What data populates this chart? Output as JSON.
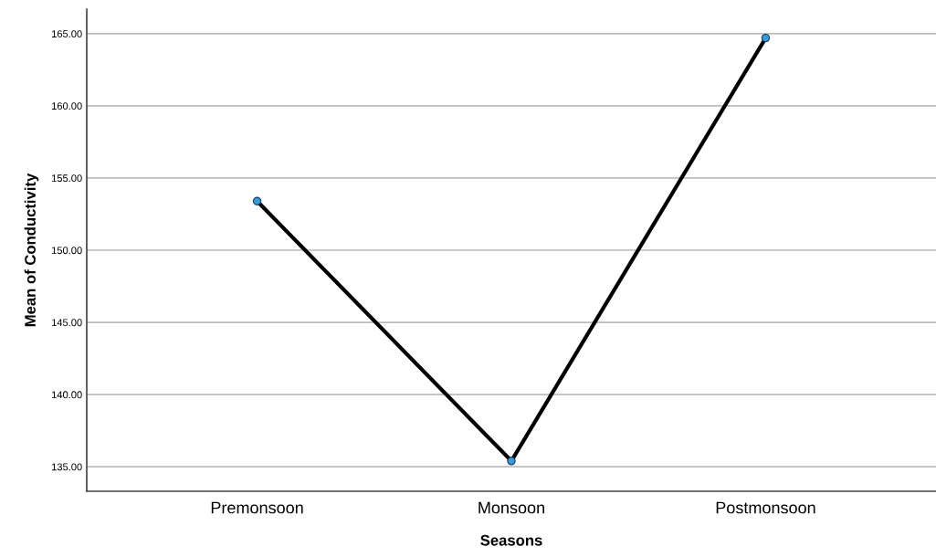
{
  "chart_data": {
    "type": "line",
    "xlabel": "Seasons",
    "ylabel": "Mean of Conductivity",
    "categories": [
      "Premonsoon",
      "Monsoon",
      "Postmonsoon"
    ],
    "series": [
      {
        "color": "#000000",
        "values": [
          153.4,
          135.4,
          164.7
        ]
      }
    ],
    "marker": "circle",
    "line_style": "solid",
    "ylim": [
      133.3,
      166.7
    ],
    "yticks": [
      {
        "value": 135,
        "label": "135.00"
      },
      {
        "value": 140,
        "label": "140.00"
      },
      {
        "value": 145,
        "label": "145.00"
      },
      {
        "value": 150,
        "label": "150.00"
      },
      {
        "value": 155,
        "label": "155.00"
      },
      {
        "value": 160,
        "label": "160.00"
      },
      {
        "value": 165,
        "label": "165.00"
      }
    ],
    "grid": "y"
  }
}
